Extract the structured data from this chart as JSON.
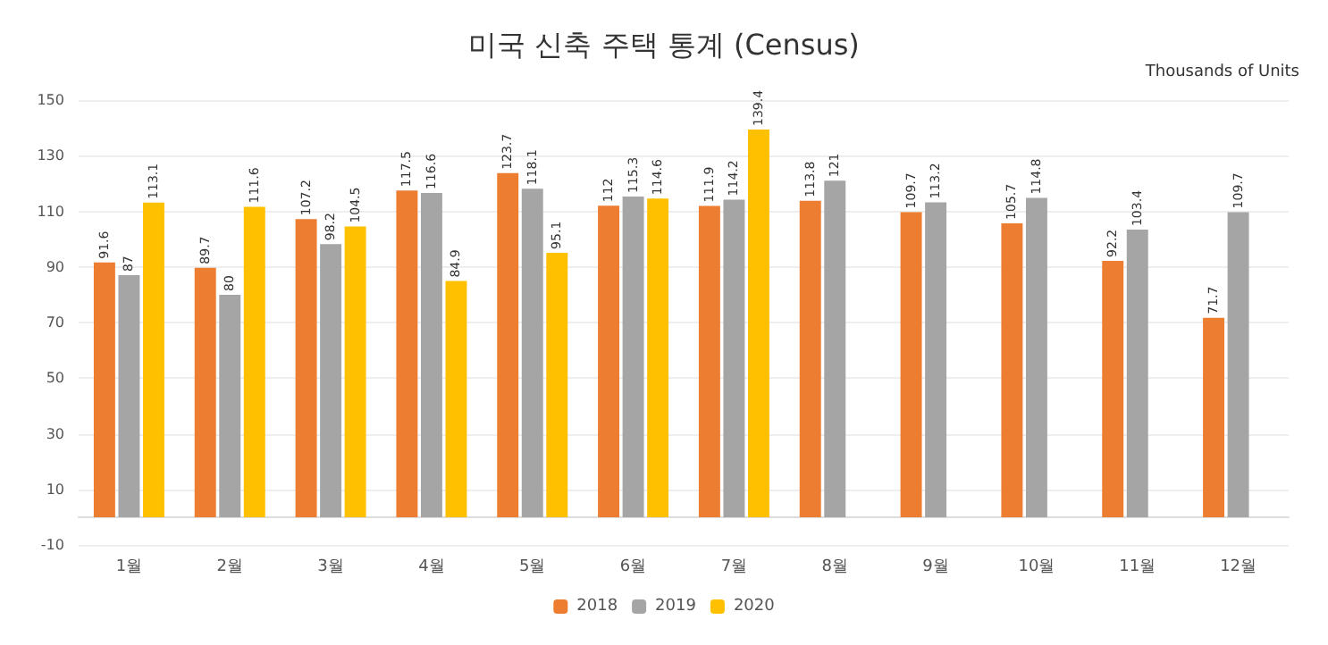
{
  "chart_data": {
    "type": "bar",
    "title": "미국 신축 주택 통계 (Census)",
    "ylabel": "Thousands of Units",
    "categories": [
      "1월",
      "2월",
      "3월",
      "4월",
      "5월",
      "6월",
      "7월",
      "8월",
      "9월",
      "10월",
      "11월",
      "12월"
    ],
    "series": [
      {
        "name": "2018",
        "color": "#ed7d31",
        "values": [
          91.6,
          89.7,
          107.2,
          117.5,
          123.7,
          112,
          111.9,
          113.8,
          109.7,
          105.7,
          92.2,
          71.7
        ]
      },
      {
        "name": "2019",
        "color": "#a5a5a5",
        "values": [
          87,
          80,
          98.2,
          116.6,
          118.1,
          115.3,
          114.2,
          121,
          113.2,
          114.8,
          103.4,
          109.7
        ]
      },
      {
        "name": "2020",
        "color": "#ffc000",
        "values": [
          113.1,
          111.6,
          104.5,
          84.9,
          95.1,
          114.6,
          139.4,
          null,
          null,
          null,
          null,
          null
        ]
      }
    ],
    "ylim": [
      -10,
      150
    ],
    "yticks": [
      -10,
      10,
      30,
      50,
      70,
      90,
      110,
      130,
      150
    ],
    "grid": "y",
    "legend": "bottom",
    "data_labels": true
  }
}
